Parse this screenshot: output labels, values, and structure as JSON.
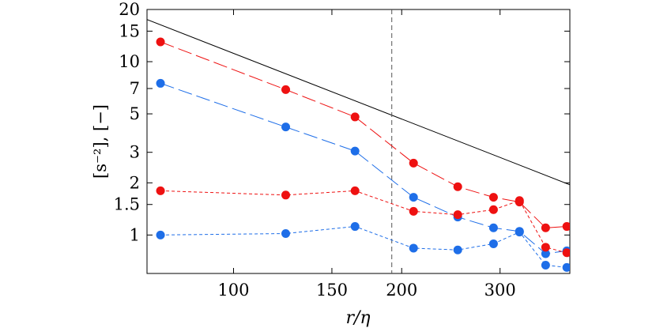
{
  "chart_data": {
    "type": "scatter",
    "title": "",
    "xlabel": "r/η",
    "ylabel": "[s⁻²], [−]",
    "xscale": "log",
    "yscale": "log",
    "xlim": [
      70,
      400
    ],
    "ylim": [
      0.6,
      20
    ],
    "grid": false,
    "x_ticks": [
      100,
      150,
      200,
      300
    ],
    "x_tick_labels": [
      "100",
      "150",
      "200",
      "300"
    ],
    "y_ticks": [
      1,
      1.5,
      2,
      3,
      5,
      7,
      10,
      15,
      20
    ],
    "y_tick_labels": [
      "1",
      "1.5",
      "2",
      "3",
      "5",
      "7",
      "10",
      "15",
      "20"
    ],
    "vertical_reference_line": {
      "x": 192,
      "style": "dashed",
      "color": "#555555"
    },
    "reference_line": {
      "x": [
        70,
        400
      ],
      "y": [
        17.5,
        1.95
      ],
      "color": "#000000"
    },
    "series": [
      {
        "color": "#ee1111",
        "dash": "long-dash",
        "x": [
          74,
          124,
          165,
          210,
          252,
          292,
          325,
          362,
          395
        ],
        "y": [
          13.0,
          6.9,
          4.8,
          2.6,
          1.9,
          1.65,
          1.55,
          1.1,
          1.12
        ]
      },
      {
        "color": "#1e6ee8",
        "dash": "long-dash",
        "x": [
          74,
          124,
          165,
          210,
          252,
          292,
          325,
          362,
          395
        ],
        "y": [
          7.5,
          4.2,
          3.05,
          1.65,
          1.27,
          1.1,
          1.05,
          0.78,
          0.81
        ]
      },
      {
        "color": "#ee1111",
        "dash": "short-dash",
        "x": [
          74,
          124,
          165,
          210,
          252,
          292,
          325,
          362,
          395
        ],
        "y": [
          1.8,
          1.7,
          1.8,
          1.37,
          1.31,
          1.4,
          1.58,
          0.85,
          0.79
        ]
      },
      {
        "color": "#1e6ee8",
        "dash": "short-dash",
        "x": [
          74,
          124,
          165,
          210,
          252,
          292,
          325,
          362,
          395
        ],
        "y": [
          1.0,
          1.02,
          1.12,
          0.84,
          0.82,
          0.89,
          1.04,
          0.67,
          0.65
        ]
      }
    ]
  }
}
